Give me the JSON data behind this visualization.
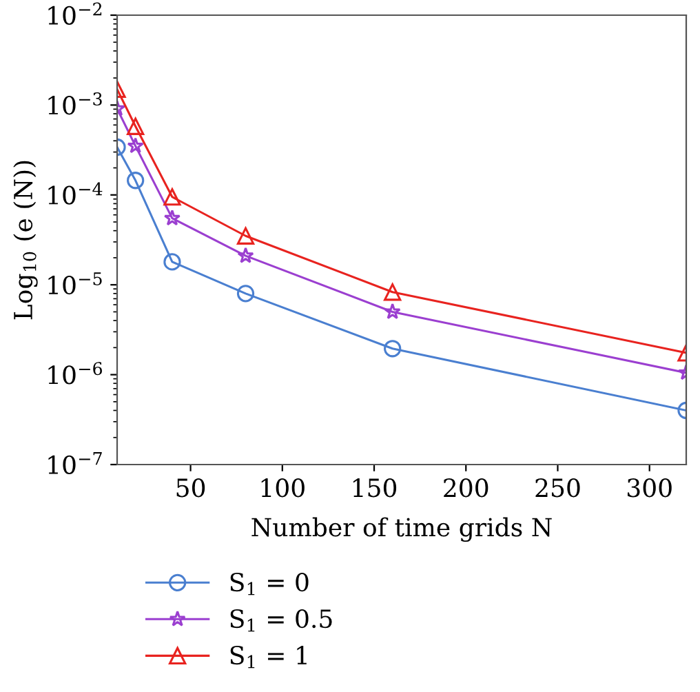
{
  "chart_data": {
    "type": "line",
    "xlabel": "Number of time grids N",
    "ylabel": "Log$_{10}$ (e (N))",
    "x": [
      10,
      20,
      40,
      80,
      160,
      320
    ],
    "series": [
      {
        "name": "S$_{1}$ = 0",
        "color": "#4a7fd0",
        "marker": "circle",
        "values": [
          0.00034,
          0.000145,
          1.8e-05,
          8e-06,
          1.95e-06,
          4e-07
        ]
      },
      {
        "name": "S$_{1}$ = 0.5",
        "color": "#9b3fd0",
        "marker": "star",
        "values": [
          0.00091,
          0.00035,
          5.5e-05,
          2.1e-05,
          5e-06,
          1.05e-06
        ]
      },
      {
        "name": "S$_{1}$ = 1",
        "color": "#e8231f",
        "marker": "triangle",
        "values": [
          0.0015,
          0.00058,
          9.5e-05,
          3.5e-05,
          8.3e-06,
          1.75e-06
        ]
      }
    ],
    "log": "y",
    "xlim": [
      10,
      320
    ],
    "xticks": [
      50,
      100,
      150,
      200,
      250,
      300
    ],
    "ylim": [
      1e-07,
      0.01
    ],
    "yticks": [
      {
        "value": 1e-07,
        "label": "10$^{−7}$"
      },
      {
        "value": 1e-06,
        "label": "10$^{−6}$"
      },
      {
        "value": 1e-05,
        "label": "10$^{−5}$"
      },
      {
        "value": 0.0001,
        "label": "10$^{−4}$"
      },
      {
        "value": 0.001,
        "label": "10$^{−3}$"
      },
      {
        "value": 0.01,
        "label": "10$^{−2}$"
      }
    ],
    "grid": false,
    "legend": "bottom",
    "line_style": "solid"
  }
}
